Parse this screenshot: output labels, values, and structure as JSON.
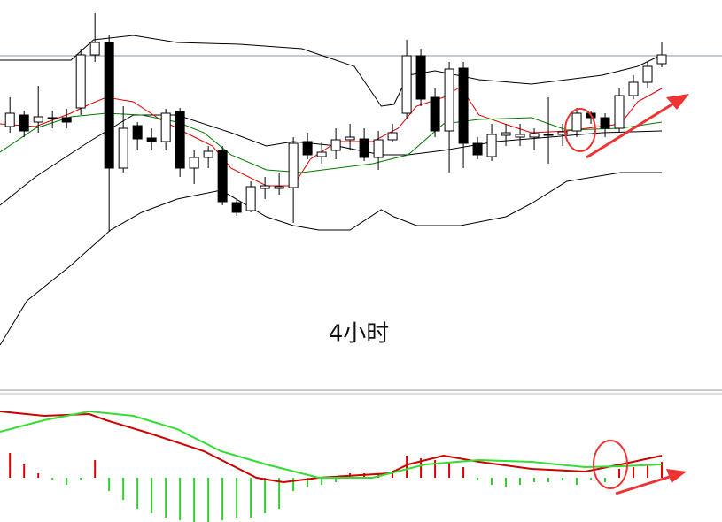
{
  "chart_data": [
    {
      "type": "candlestick",
      "annotation": "4小时",
      "xlim": [
        -0.7,
        50.25
      ],
      "ylim": [
        0,
        440
      ],
      "up_color": "#ffffff",
      "down_color": "#000000",
      "reference_line": 377,
      "open": [
        297,
        310,
        302,
        306,
        307,
        318,
        378,
        392,
        250,
        298,
        284,
        280,
        314,
        250,
        262,
        270,
        211,
        202,
        227,
        227,
        228,
        280,
        263,
        270,
        282,
        283,
        262,
        282,
        312,
        377,
        330,
        292,
        363,
        278,
        263,
        287,
        285,
        285,
        288,
        288,
        292,
        312,
        307,
        295,
        332,
        347,
        368
      ],
      "high": [
        330,
        315,
        343,
        315,
        317,
        385,
        425,
        400,
        320,
        302,
        295,
        317,
        318,
        270,
        275,
        275,
        215,
        235,
        240,
        245,
        285,
        290,
        280,
        295,
        300,
        295,
        292,
        300,
        395,
        385,
        340,
        370,
        370,
        285,
        300,
        300,
        300,
        295,
        330,
        300,
        318,
        315,
        312,
        340,
        355,
        370,
        392
      ],
      "low": [
        290,
        285,
        290,
        295,
        295,
        310,
        370,
        178,
        245,
        270,
        270,
        270,
        240,
        232,
        250,
        208,
        196,
        200,
        215,
        220,
        188,
        260,
        255,
        260,
        270,
        258,
        248,
        280,
        305,
        320,
        285,
        245,
        250,
        260,
        258,
        275,
        275,
        270,
        255,
        275,
        285,
        300,
        285,
        290,
        328,
        340,
        364
      ],
      "close": [
        312,
        292,
        308,
        307,
        302,
        378,
        392,
        250,
        295,
        283,
        280,
        312,
        250,
        262,
        269,
        212,
        200,
        229,
        230,
        229,
        278,
        265,
        268,
        282,
        285,
        262,
        282,
        290,
        377,
        328,
        292,
        362,
        278,
        265,
        288,
        290,
        288,
        289,
        288,
        291,
        312,
        307,
        295,
        332,
        347,
        365,
        378
      ],
      "series": [
        {
          "color": "#000000",
          "x": [
            -0.7,
            4.3,
            5.9,
            8.7,
            11.8,
            16.2,
            20.6,
            24.3,
            26.2,
            27.1,
            28.1,
            30,
            33.1,
            36.8,
            41.8,
            44.3,
            46
          ],
          "values": [
            372,
            372,
            395,
            400,
            392,
            390,
            385,
            365,
            320,
            322,
            355,
            360,
            350,
            345,
            355,
            365,
            378
          ]
        },
        {
          "color": "#000000",
          "x": [
            -0.7,
            1.2,
            4.3,
            7.1,
            9.3,
            11.8,
            14.9,
            18.1,
            20,
            21.8,
            24,
            26.2,
            27.1,
            28.7,
            31.8,
            35,
            36.8,
            39.3,
            43.1,
            46
          ],
          "values": [
            50,
            100,
            140,
            180,
            200,
            215,
            225,
            195,
            185,
            180,
            180,
            203,
            195,
            185,
            185,
            195,
            210,
            235,
            245,
            245
          ]
        },
        {
          "color": "#000000",
          "x": [
            -0.7,
            1.8,
            5.6,
            8.7,
            11.8,
            15.6,
            18.1,
            20,
            23.1,
            26.2,
            28.1,
            30.6,
            34.3,
            38.1,
            41.8,
            46
          ],
          "values": [
            208,
            240,
            280,
            310,
            310,
            290,
            275,
            280,
            275,
            265,
            265,
            270,
            280,
            285,
            290,
            292
          ]
        },
        {
          "color": "#e00000",
          "x": [
            -0.7,
            1.8,
            4.3,
            5.6,
            6.8,
            8.7,
            10.6,
            12.4,
            14.3,
            15.6,
            18.1,
            20,
            21.2,
            23.1,
            25.6,
            27.4,
            28.7,
            30.6,
            31.8,
            33.1,
            34.9,
            36.8,
            39.3,
            43.1,
            44.3,
            46
          ],
          "values": [
            300,
            297,
            312,
            322,
            330,
            325,
            305,
            290,
            275,
            250,
            230,
            230,
            260,
            280,
            280,
            295,
            320,
            330,
            342,
            310,
            300,
            290,
            292,
            300,
            325,
            340
          ]
        },
        {
          "color": "#007a00",
          "x": [
            -0.7,
            1.8,
            4.3,
            6.8,
            9.3,
            11.8,
            13.7,
            15.6,
            18.1,
            20.6,
            23.1,
            25.6,
            28.1,
            30.6,
            33.1,
            36.8,
            39.3,
            43.1,
            46
          ],
          "values": [
            268,
            295,
            308,
            312,
            310,
            302,
            290,
            265,
            248,
            245,
            250,
            255,
            265,
            300,
            305,
            307,
            293,
            295,
            302
          ]
        }
      ]
    },
    {
      "type": "bar",
      "xlim": [
        -0.7,
        50.25
      ],
      "ylim": [
        -50,
        95
      ],
      "up_color": "#e00000",
      "down_color": "#33cc33",
      "values": [
        28,
        15,
        5,
        -2,
        -8,
        -3,
        20,
        -15,
        -25,
        -35,
        -40,
        -45,
        -48,
        -50,
        -50,
        -48,
        -45,
        -45,
        -40,
        -35,
        -15,
        -10,
        -8,
        -5,
        5,
        5,
        5,
        8,
        25,
        22,
        20,
        18,
        12,
        -3,
        -8,
        -10,
        -8,
        -5,
        -5,
        -3,
        -8,
        -2,
        -5,
        10,
        12,
        15,
        18
      ],
      "series": [
        {
          "color": "#cc0000",
          "x": [
            -0.7,
            2.4,
            5.6,
            6.8,
            9.9,
            13.7,
            17.4,
            19.3,
            21.8,
            26.8,
            28.1,
            30.6,
            33.1,
            36.8,
            40.6,
            43.1,
            46
          ],
          "values": [
            75,
            70,
            72,
            65,
            50,
            30,
            0,
            -5,
            0,
            5,
            15,
            25,
            18,
            10,
            7,
            15,
            25
          ]
        },
        {
          "color": "#33dd33",
          "x": [
            -0.7,
            2.4,
            5.6,
            8.7,
            11.8,
            14.9,
            18.1,
            21.8,
            25.6,
            29.3,
            33.1,
            36.8,
            40.6,
            43.1,
            46
          ],
          "values": [
            52,
            65,
            75,
            70,
            55,
            30,
            15,
            0,
            0,
            15,
            20,
            18,
            12,
            13,
            15
          ]
        }
      ]
    }
  ]
}
